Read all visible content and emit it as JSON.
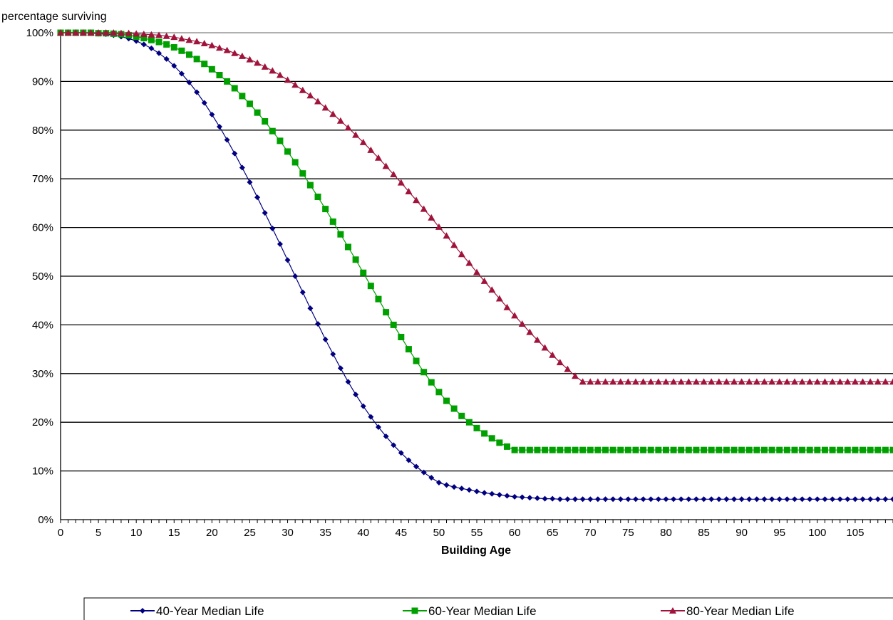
{
  "chart_data": {
    "type": "line",
    "title": "",
    "xlabel": "Building Age",
    "ylabel": "percentage surviving",
    "xlim": [
      0,
      110
    ],
    "ylim": [
      0,
      100
    ],
    "x_ticks": [
      "0",
      "5",
      "10",
      "15",
      "20",
      "25",
      "30",
      "35",
      "40",
      "45",
      "50",
      "55",
      "60",
      "65",
      "70",
      "75",
      "80",
      "85",
      "90",
      "95",
      "100",
      "105"
    ],
    "y_ticks": [
      "0%",
      "10%",
      "20%",
      "30%",
      "40%",
      "50%",
      "60%",
      "70%",
      "80%",
      "90%",
      "100%"
    ],
    "grid": "horizontal",
    "legend_position": "bottom",
    "x": [
      0,
      1,
      2,
      3,
      4,
      5,
      6,
      7,
      8,
      9,
      10,
      11,
      12,
      13,
      14,
      15,
      16,
      17,
      18,
      19,
      20,
      21,
      22,
      23,
      24,
      25,
      26,
      27,
      28,
      29,
      30,
      31,
      32,
      33,
      34,
      35,
      36,
      37,
      38,
      39,
      40,
      41,
      42,
      43,
      44,
      45,
      46,
      47,
      48,
      49,
      50,
      51,
      52,
      53,
      54,
      55,
      56,
      57,
      58,
      59,
      60,
      61,
      62,
      63,
      64,
      65,
      66,
      67,
      68,
      69,
      70,
      71,
      72,
      73,
      74,
      75,
      76,
      77,
      78,
      79,
      80,
      81,
      82,
      83,
      84,
      85,
      86,
      87,
      88,
      89,
      90,
      91,
      92,
      93,
      94,
      95,
      96,
      97,
      98,
      99,
      100,
      101,
      102,
      103,
      104,
      105,
      106,
      107,
      108,
      109,
      110
    ],
    "series": [
      {
        "name": "40-Year Median Life",
        "color": "#000080",
        "marker": "diamond",
        "values": [
          100,
          100,
          100,
          100,
          99.9,
          99.8,
          99.7,
          99.5,
          99.2,
          98.8,
          98.3,
          97.6,
          96.8,
          95.8,
          94.6,
          93.2,
          91.6,
          89.8,
          87.8,
          85.6,
          83.2,
          80.7,
          78,
          75.2,
          72.3,
          69.3,
          66.2,
          63,
          59.8,
          56.6,
          53.3,
          50,
          46.7,
          43.4,
          40.2,
          37,
          34,
          31.1,
          28.3,
          25.7,
          23.3,
          21.1,
          19,
          17.1,
          15.3,
          13.7,
          12.2,
          10.9,
          9.7,
          8.6,
          7.6,
          7.1,
          6.7,
          6.4,
          6.1,
          5.8,
          5.5,
          5.3,
          5.1,
          4.9,
          4.7,
          4.6,
          4.5,
          4.4,
          4.3,
          4.3,
          4.2,
          4.2,
          4.2,
          4.2,
          4.2,
          4.2,
          4.2,
          4.2,
          4.2,
          4.2,
          4.2,
          4.2,
          4.2,
          4.2,
          4.2,
          4.2,
          4.2,
          4.2,
          4.2,
          4.2,
          4.2,
          4.2,
          4.2,
          4.2,
          4.2,
          4.2,
          4.2,
          4.2,
          4.2,
          4.2,
          4.2,
          4.2,
          4.2,
          4.2,
          4.2,
          4.2,
          4.2,
          4.2,
          4.2,
          4.2,
          4.2,
          4.2,
          4.2,
          4.2,
          4.2
        ]
      },
      {
        "name": "60-Year Median Life",
        "color": "#00A000",
        "marker": "square",
        "values": [
          100,
          100,
          100,
          100,
          100,
          99.9,
          99.9,
          99.8,
          99.7,
          99.5,
          99.2,
          98.9,
          98.5,
          98.1,
          97.6,
          97,
          96.3,
          95.5,
          94.6,
          93.6,
          92.5,
          91.3,
          90,
          88.6,
          87,
          85.4,
          83.6,
          81.8,
          79.8,
          77.8,
          75.6,
          73.4,
          71.1,
          68.7,
          66.3,
          63.8,
          61.2,
          58.6,
          56,
          53.4,
          50.7,
          48,
          45.3,
          42.6,
          40,
          37.5,
          35,
          32.6,
          30.3,
          28.2,
          26.2,
          24.4,
          22.8,
          21.3,
          20,
          18.8,
          17.7,
          16.7,
          15.8,
          15,
          14.3,
          14.3,
          14.3,
          14.3,
          14.3,
          14.3,
          14.3,
          14.3,
          14.3,
          14.3,
          14.3,
          14.3,
          14.3,
          14.3,
          14.3,
          14.3,
          14.3,
          14.3,
          14.3,
          14.3,
          14.3,
          14.3,
          14.3,
          14.3,
          14.3,
          14.3,
          14.3,
          14.3,
          14.3,
          14.3,
          14.3,
          14.3,
          14.3,
          14.3,
          14.3,
          14.3,
          14.3,
          14.3,
          14.3,
          14.3,
          14.3,
          14.3,
          14.3,
          14.3,
          14.3,
          14.3,
          14.3,
          14.3,
          14.3,
          14.3,
          14.3
        ]
      },
      {
        "name": "80-Year Median Life",
        "color": "#A0143C",
        "marker": "triangle",
        "values": [
          100,
          100,
          100,
          100,
          100,
          100,
          100,
          100,
          99.9,
          99.9,
          99.8,
          99.7,
          99.6,
          99.5,
          99.3,
          99.1,
          98.8,
          98.5,
          98.2,
          97.8,
          97.4,
          96.9,
          96.4,
          95.8,
          95.2,
          94.5,
          93.8,
          93,
          92.2,
          91.3,
          90.3,
          89.3,
          88.2,
          87.1,
          85.9,
          84.6,
          83.3,
          81.9,
          80.5,
          79,
          77.5,
          75.9,
          74.3,
          72.6,
          70.9,
          69.2,
          67.4,
          65.6,
          63.8,
          62,
          60.1,
          58.3,
          56.4,
          54.5,
          52.7,
          50.8,
          49,
          47.2,
          45.4,
          43.6,
          41.9,
          40.2,
          38.5,
          36.9,
          35.3,
          33.8,
          32.3,
          30.9,
          29.5,
          28.3,
          28.3,
          28.3,
          28.3,
          28.3,
          28.3,
          28.3,
          28.3,
          28.3,
          28.3,
          28.3,
          28.3,
          28.3,
          28.3,
          28.3,
          28.3,
          28.3,
          28.3,
          28.3,
          28.3,
          28.3,
          28.3,
          28.3,
          28.3,
          28.3,
          28.3,
          28.3,
          28.3,
          28.3,
          28.3,
          28.3,
          28.3,
          28.3,
          28.3,
          28.3,
          28.3,
          28.3,
          28.3,
          28.3,
          28.3,
          28.3,
          28.3
        ]
      }
    ]
  }
}
